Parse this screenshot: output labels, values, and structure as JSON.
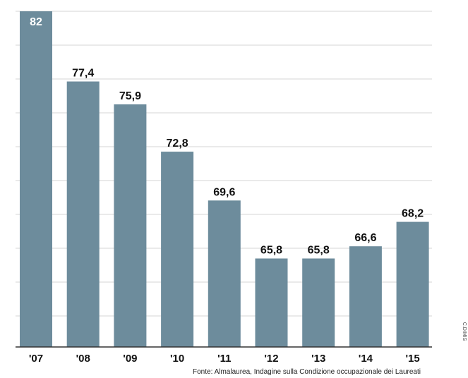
{
  "chart_data": {
    "type": "bar",
    "categories": [
      "'07",
      "'08",
      "'09",
      "'10",
      "'11",
      "'12",
      "'13",
      "'14",
      "'15"
    ],
    "values": [
      82,
      77.4,
      75.9,
      72.8,
      69.6,
      65.8,
      65.8,
      66.6,
      68.2
    ],
    "value_labels": [
      "82",
      "77,4",
      "75,9",
      "72,8",
      "69,6",
      "65,8",
      "65,8",
      "66,6",
      "68,2"
    ],
    "title": "",
    "xlabel": "",
    "ylabel": "",
    "ylim": [
      60,
      82
    ],
    "grid": true,
    "bar_color": "#6d8c9c",
    "gridline_color": "#d4d4d4"
  },
  "source": "Fonte: Almalaurea, Indagine sulla Condizione occupazionale dei Laureati",
  "credit": "C.DIMIS"
}
